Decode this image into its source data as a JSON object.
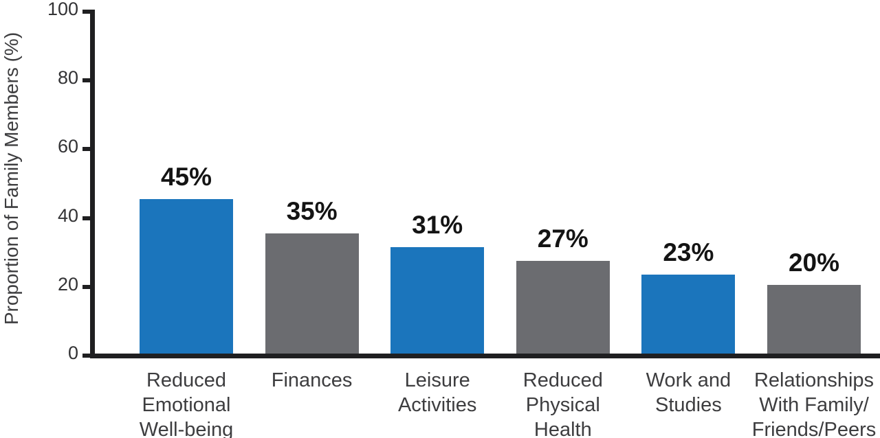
{
  "chart_data": {
    "type": "bar",
    "title": "",
    "xlabel": "",
    "ylabel": "Proportion of Family Members (%)",
    "categories": [
      "Reduced Emotional Well-being",
      "Finances",
      "Leisure Activities",
      "Reduced Physical Health",
      "Work and Studies",
      "Relationships With Family/Friends/Peers"
    ],
    "category_lines": [
      [
        "Reduced",
        "Emotional",
        "Well-being"
      ],
      [
        "Finances"
      ],
      [
        "Leisure",
        "Activities"
      ],
      [
        "Reduced",
        "Physical",
        "Health"
      ],
      [
        "Work and",
        "Studies"
      ],
      [
        "Relationships",
        "With Family/",
        "Friends/Peers"
      ]
    ],
    "values": [
      45,
      35,
      31,
      27,
      23,
      20
    ],
    "value_labels": [
      "45%",
      "35%",
      "31%",
      "27%",
      "23%",
      "20%"
    ],
    "series_colors": [
      "#1b75bc",
      "#6b6c70",
      "#1b75bc",
      "#6b6c70",
      "#1b75bc",
      "#6b6c70"
    ],
    "ylim": [
      0,
      100
    ],
    "yticks": [
      0,
      20,
      40,
      60,
      80,
      100
    ],
    "grid": false,
    "legend": false,
    "colors": {
      "blue": "#1b75bc",
      "gray": "#6b6c70",
      "axis": "#1f1f21",
      "tick_label": "#333335",
      "category_label": "#3d3d3f",
      "value_label": "#141414",
      "background": "#ffffff"
    }
  }
}
